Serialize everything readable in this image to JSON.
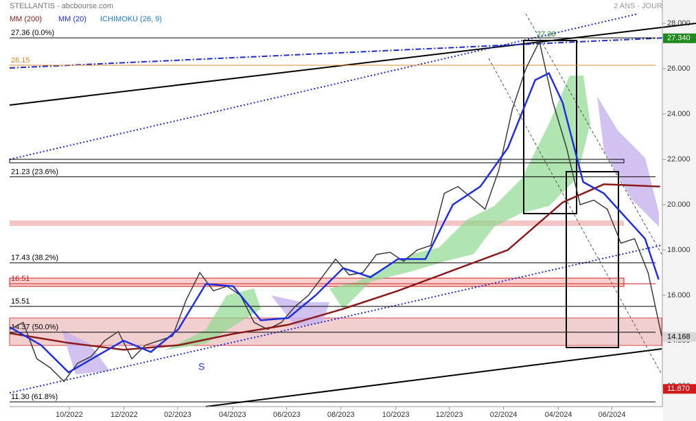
{
  "chart_data": {
    "type": "line",
    "title": "STELLANTIS - abcbourse.com",
    "subtitle": "2 ANS - JOUR",
    "legend": [
      "MM (200)",
      "MM (20)",
      "ICHIMOKU (26, 9)"
    ],
    "xlim": [
      0,
      48
    ],
    "ylim": [
      11.09,
      29.03
    ],
    "xticks": [
      {
        "value": 4.39,
        "label": "10/2022"
      },
      {
        "value": 8.43,
        "label": "12/2022"
      },
      {
        "value": 12.37,
        "label": "02/2023"
      },
      {
        "value": 16.41,
        "label": "04/2023"
      },
      {
        "value": 20.4,
        "label": "06/2023"
      },
      {
        "value": 24.39,
        "label": "08/2023"
      },
      {
        "value": 28.43,
        "label": "10/2023"
      },
      {
        "value": 32.37,
        "label": "12/2023"
      },
      {
        "value": 36.36,
        "label": "02/2024"
      },
      {
        "value": 40.4,
        "label": "04/2024"
      },
      {
        "value": 44.34,
        "label": "06/2024"
      }
    ],
    "yticks": [
      {
        "value": 28,
        "label": "28.000"
      },
      {
        "value": 26,
        "label": "26.000"
      },
      {
        "value": 24,
        "label": "24.000"
      },
      {
        "value": 22,
        "label": "22.000"
      },
      {
        "value": 20,
        "label": "20.000"
      },
      {
        "value": 18,
        "label": "18.000"
      },
      {
        "value": 16,
        "label": "16.000"
      },
      {
        "value": 14,
        "label": "14.000"
      },
      {
        "value": 12,
        "label": "12.000"
      }
    ],
    "series": [
      {
        "name": "STELLANTIS",
        "color": "#3a3a3a",
        "x": [
          0,
          1,
          2,
          3,
          4,
          5,
          6,
          7,
          8,
          9,
          10,
          11,
          12,
          13,
          14,
          15,
          16,
          17,
          18,
          19,
          20,
          21,
          22,
          23,
          24,
          25,
          26,
          27,
          28,
          29,
          30,
          31,
          32,
          33,
          34,
          35,
          36,
          37,
          38,
          39,
          40,
          41,
          42,
          43,
          44,
          45,
          46,
          47,
          48
        ],
        "values": [
          14.5,
          14.8,
          13.2,
          12.8,
          12.2,
          13.0,
          13.3,
          14.0,
          14.4,
          13.2,
          13.8,
          14.0,
          14.2,
          15.8,
          17.0,
          16.2,
          16.4,
          16.0,
          14.8,
          14.5,
          14.8,
          15.5,
          16.0,
          16.8,
          17.6,
          16.9,
          17.0,
          17.8,
          17.9,
          17.5,
          18.0,
          18.2,
          20.5,
          20.8,
          20.3,
          19.8,
          21.5,
          24.2,
          26.0,
          27.2,
          24.5,
          22.5,
          20.0,
          20.2,
          19.8,
          18.3,
          18.5,
          17.0,
          14.2
        ]
      },
      {
        "name": "MM (200)",
        "color": "#8b1a1a",
        "x": [
          0,
          4.34,
          8.38,
          12.42,
          16.46,
          20.51,
          24.55,
          28.59,
          32.63,
          36.67,
          40.71,
          43.74,
          47.88
        ],
        "values": [
          14.33,
          13.9,
          13.6,
          13.8,
          14.3,
          14.7,
          15.4,
          16.2,
          17.1,
          18.0,
          20.1,
          20.9,
          20.8
        ]
      },
      {
        "name": "MM (20)",
        "color": "#1f2ee0",
        "x": [
          0,
          2.32,
          4.34,
          6.36,
          8.38,
          10.4,
          12.42,
          14.44,
          16.46,
          18.48,
          20.51,
          22.53,
          24.55,
          26.57,
          28.59,
          30.61,
          32.63,
          34.65,
          36.67,
          38.69,
          39.7,
          40.71,
          42.22,
          43.74,
          45.25,
          46.77,
          47.78
        ],
        "values": [
          14.6,
          13.8,
          12.6,
          13.3,
          14.0,
          13.5,
          14.5,
          16.5,
          16.4,
          14.9,
          15.0,
          16.0,
          17.2,
          16.8,
          17.6,
          17.6,
          20.0,
          20.8,
          22.5,
          25.5,
          25.8,
          24.5,
          21.0,
          20.5,
          19.5,
          18.5,
          16.7
        ]
      }
    ],
    "levels": [
      {
        "value": 27.36,
        "label": "27.36  (0.0%)",
        "color": "#000000"
      },
      {
        "value": 26.15,
        "label": "26.15",
        "color": "#e08a2c"
      },
      {
        "value": 21.23,
        "label": "21.23  (23.6%)",
        "color": "#000000"
      },
      {
        "value": 17.43,
        "label": "17.43  (38.2%)",
        "color": "#000000"
      },
      {
        "value": 16.51,
        "label": "16.51",
        "color": "#d11a1a"
      },
      {
        "value": 15.51,
        "label": "15.51",
        "color": "#000000"
      },
      {
        "value": 14.37,
        "label": "14.37  (50.0%)",
        "color": "#000000"
      },
      {
        "value": 11.3,
        "label": "11.30  (61.8%)",
        "color": "#000000"
      }
    ],
    "price_tags": [
      {
        "value": 27.34,
        "label": "27.340",
        "color": "#1e8a1e"
      },
      {
        "value": 14.168,
        "label": "14.168",
        "color": "#d8d8d8"
      },
      {
        "value": 11.87,
        "label": "11.870",
        "color": "#d11a1a"
      }
    ],
    "annotations": [
      "S",
      "27.36"
    ]
  }
}
